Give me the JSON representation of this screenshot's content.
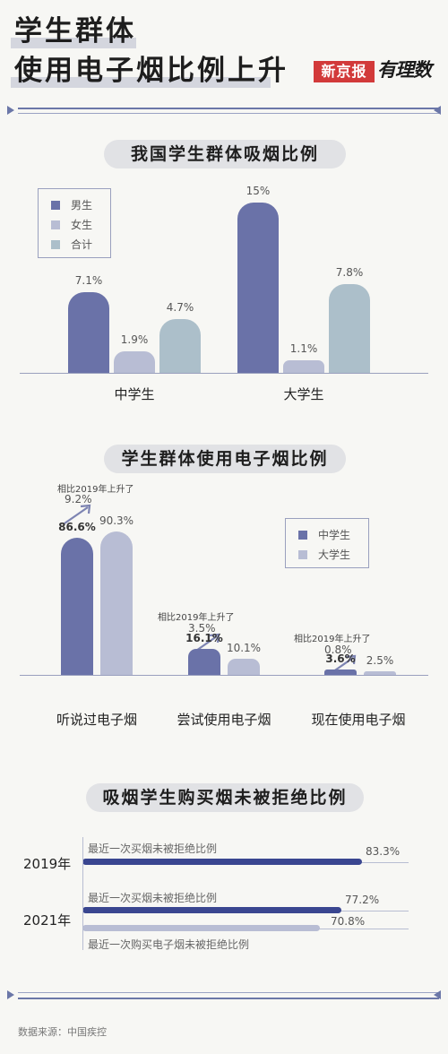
{
  "header": {
    "title_line1": "学生群体",
    "title_line2": "使用电子烟比例上升",
    "brand_name": "新京报",
    "brand_script": "有理数"
  },
  "colors": {
    "male": "#6a72a8",
    "female": "#b8bdd4",
    "total": "#acbfca",
    "middle": "#6a72a8",
    "college": "#b8bdd4",
    "accent": "#d23a3a"
  },
  "chart_data": [
    {
      "type": "bar",
      "title": "我国学生群体吸烟比例",
      "categories": [
        "中学生",
        "大学生"
      ],
      "series": [
        {
          "name": "男生",
          "values": [
            7.1,
            15
          ],
          "labels": [
            "7.1%",
            "15%"
          ]
        },
        {
          "name": "女生",
          "values": [
            1.9,
            1.1
          ],
          "labels": [
            "1.9%",
            "1.1%"
          ]
        },
        {
          "name": "合计",
          "values": [
            4.7,
            7.8
          ],
          "labels": [
            "4.7%",
            "7.8%"
          ]
        }
      ],
      "legend": "top-left",
      "grid": false
    },
    {
      "type": "bar",
      "title": "学生群体使用电子烟比例",
      "categories": [
        "听说过电子烟",
        "尝试使用电子烟",
        "现在使用电子烟"
      ],
      "series": [
        {
          "name": "中学生",
          "values": [
            86.6,
            16.1,
            3.6
          ],
          "labels": [
            "86.6%",
            "16.1%",
            "3.6%"
          ]
        },
        {
          "name": "大学生",
          "values": [
            90.3,
            10.1,
            2.5
          ],
          "labels": [
            "90.3%",
            "10.1%",
            "2.5%"
          ]
        }
      ],
      "annotations": [
        {
          "text": "相比2019年上升了",
          "value": "9.2%"
        },
        {
          "text": "相比2019年上升了",
          "value": "3.5%"
        },
        {
          "text": "相比2019年上升了",
          "value": "0.8%"
        }
      ],
      "legend": "right",
      "grid": false
    },
    {
      "type": "bar",
      "orientation": "horizontal",
      "title": "吸烟学生购买烟未被拒绝比例",
      "groups": [
        {
          "year": "2019年",
          "bars": [
            {
              "label": "最近一次买烟未被拒绝比例",
              "value": 83.3,
              "display": "83.3%"
            }
          ]
        },
        {
          "year": "2021年",
          "bars": [
            {
              "label": "最近一次买烟未被拒绝比例",
              "value": 77.2,
              "display": "77.2%"
            },
            {
              "label": "最近一次购买电子烟未被拒绝比例",
              "value": 70.8,
              "display": "70.8%"
            }
          ]
        }
      ],
      "grid": false
    }
  ],
  "footer": {
    "source": "数据来源：中国疾控"
  }
}
